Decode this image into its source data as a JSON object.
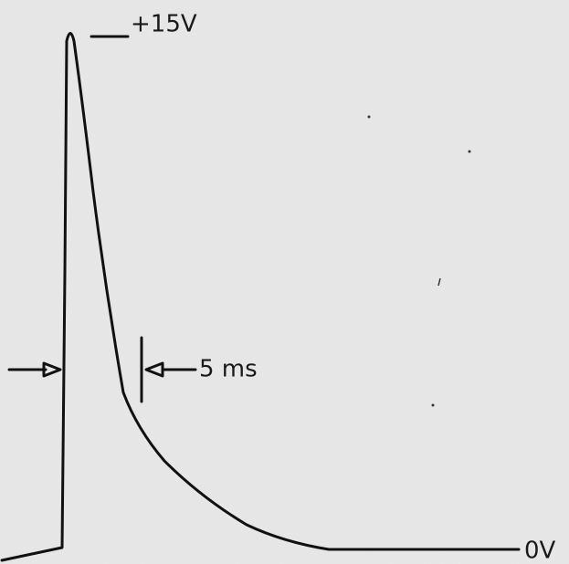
{
  "labels": {
    "peak_voltage": "+15V",
    "pulse_width": "5 ms",
    "baseline_voltage": "0V"
  }
}
